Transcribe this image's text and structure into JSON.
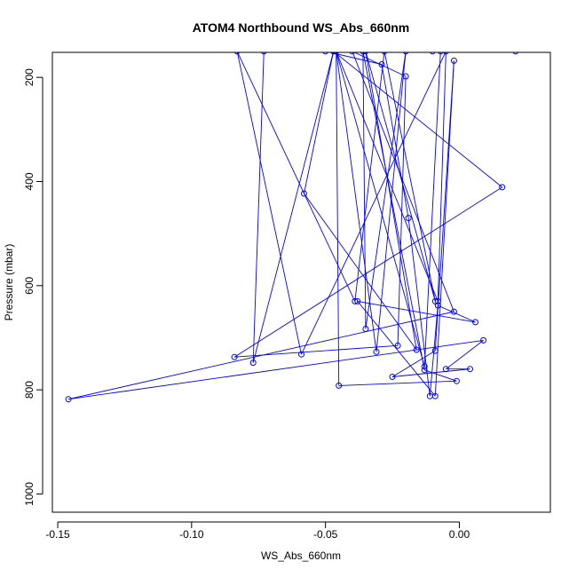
{
  "chart_data": {
    "type": "line",
    "title": "ATOM4 Northbound WS_Abs_660nm",
    "xlabel": "WS_Abs_660nm",
    "ylabel": "Pressure (mbar)",
    "xlim": [
      -0.152,
      0.034
    ],
    "ylim": [
      1035,
      152
    ],
    "y_reversed": true,
    "x_ticks": [
      -0.15,
      -0.1,
      -0.05,
      0.0
    ],
    "x_tick_labels": [
      "-0.15",
      "-0.10",
      "-0.05",
      "0.00"
    ],
    "y_ticks": [
      200,
      400,
      600,
      800,
      1000
    ],
    "y_tick_labels": [
      "200",
      "400",
      "600",
      "800",
      "1000"
    ],
    "grid": false,
    "legend": "none",
    "series": [
      {
        "color": "#0000ff",
        "marker": "open-circle",
        "points": [
          [
            -0.073,
            150
          ],
          [
            -0.077,
            748
          ],
          [
            -0.047,
            150
          ],
          [
            -0.058,
            423
          ],
          [
            -0.016,
            723
          ],
          [
            -0.035,
            150
          ],
          [
            -0.009,
            630
          ],
          [
            -0.028,
            150
          ],
          [
            -0.039,
            630
          ],
          [
            -0.083,
            150
          ],
          [
            -0.059,
            732
          ],
          [
            -0.005,
            150
          ],
          [
            -0.008,
            630
          ],
          [
            -0.046,
            150
          ],
          [
            -0.045,
            792
          ],
          [
            -0.001,
            783
          ],
          [
            -0.013,
            762
          ],
          [
            -0.036,
            150
          ],
          [
            -0.035,
            683
          ],
          [
            -0.02,
            150
          ],
          [
            -0.031,
            727
          ],
          [
            -0.046,
            150
          ],
          [
            -0.013,
            755
          ],
          [
            -0.007,
            150
          ],
          [
            -0.05,
            150
          ],
          [
            -0.029,
            175
          ],
          [
            -0.019,
            470
          ],
          [
            -0.011,
            812
          ],
          [
            -0.008,
            638
          ],
          [
            0.006,
            670
          ],
          [
            -0.038,
            630
          ],
          [
            -0.009,
            812
          ],
          [
            -0.002,
            168
          ],
          [
            -0.009,
            725
          ],
          [
            -0.025,
            775
          ],
          [
            0.004,
            760
          ],
          [
            -0.005,
            760
          ],
          [
            0.009,
            705
          ],
          [
            -0.146,
            818
          ],
          [
            -0.002,
            650
          ],
          [
            -0.04,
            150
          ],
          [
            -0.02,
            198
          ],
          [
            -0.023,
            715
          ],
          [
            -0.084,
            737
          ],
          [
            0.016,
            411
          ],
          [
            -0.047,
            150
          ],
          [
            -0.01,
            150
          ],
          [
            0.021,
            150
          ]
        ]
      }
    ]
  }
}
